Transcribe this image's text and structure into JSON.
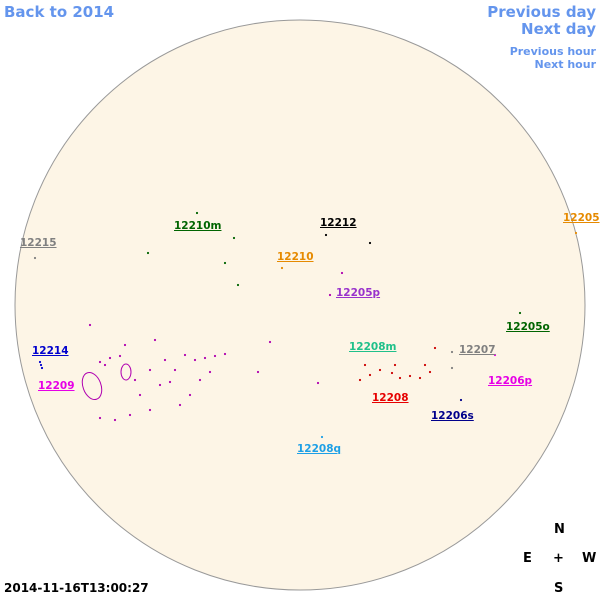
{
  "nav": {
    "back": "Back to 2014",
    "previous_day": "Previous day",
    "next_day": "Next day",
    "previous_hour": "Previous hour",
    "next_hour": "Next hour"
  },
  "regions": [
    {
      "label": "12215",
      "color": "#808080"
    },
    {
      "label": "12210m",
      "color": "#006400"
    },
    {
      "label": "12212",
      "color": "#000000"
    },
    {
      "label": "12210",
      "color": "#e68a00"
    },
    {
      "label": "12205",
      "color": "#e68a00"
    },
    {
      "label": "12205p",
      "color": "#9932cc"
    },
    {
      "label": "12205o",
      "color": "#006400"
    },
    {
      "label": "12214",
      "color": "#0000cd"
    },
    {
      "label": "12209",
      "color": "#e600e6"
    },
    {
      "label": "12208m",
      "color": "#20c08a"
    },
    {
      "label": "12207",
      "color": "#808080"
    },
    {
      "label": "12206p",
      "color": "#e600e6"
    },
    {
      "label": "12208",
      "color": "#e60000"
    },
    {
      "label": "12206s",
      "color": "#00008b"
    },
    {
      "label": "12208q",
      "color": "#1ea0e6"
    }
  ],
  "timestamp": "2014-11-16T13:00:27",
  "compass": {
    "north": "N",
    "east": "E",
    "center": "+",
    "west": "W",
    "south": "S"
  }
}
